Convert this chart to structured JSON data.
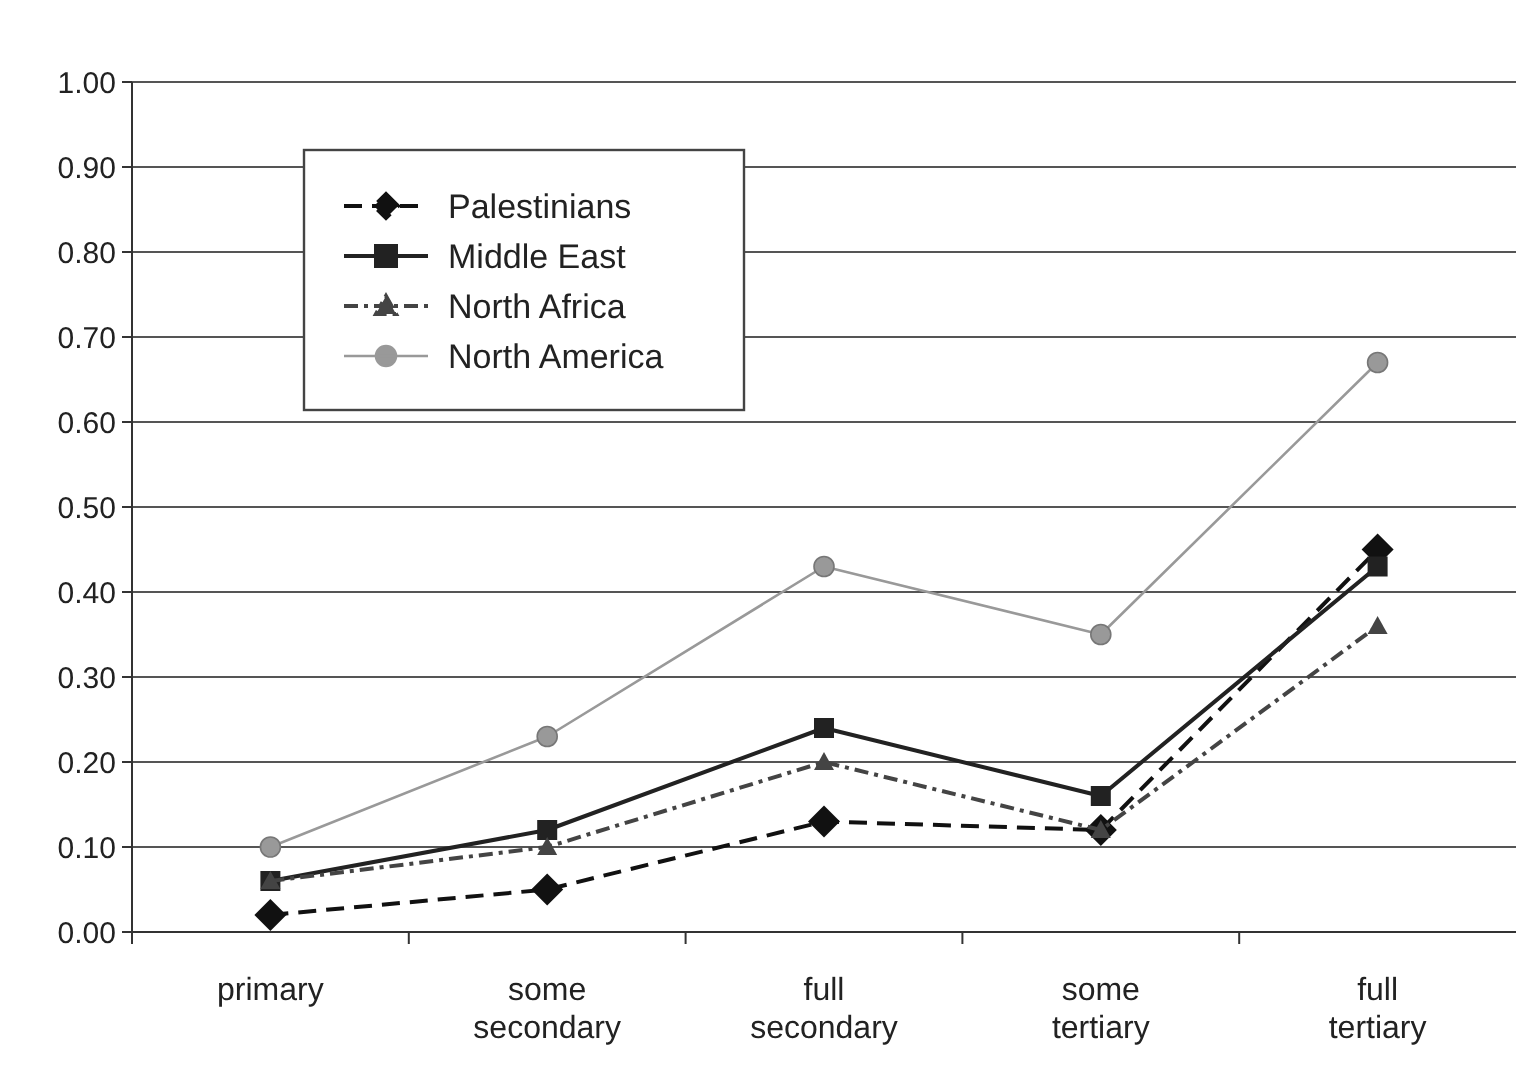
{
  "chart_data": {
    "type": "line",
    "categories": [
      "primary",
      "some secondary",
      "full secondary",
      "some tertiary",
      "full tertiary"
    ],
    "series": [
      {
        "name": "Palestinians",
        "color": "#111111",
        "values": [
          0.02,
          0.05,
          0.13,
          0.12,
          0.45
        ],
        "marker": "diamond",
        "line_style": "dashed"
      },
      {
        "name": "Middle East",
        "color": "#222222",
        "values": [
          0.06,
          0.12,
          0.24,
          0.16,
          0.43
        ],
        "marker": "square",
        "line_style": "solid"
      },
      {
        "name": "North Africa",
        "color": "#444444",
        "values": [
          0.06,
          0.1,
          0.2,
          0.12,
          0.36
        ],
        "marker": "triangle",
        "line_style": "dashdot"
      },
      {
        "name": "North America",
        "color": "#999999",
        "values": [
          0.1,
          0.23,
          0.43,
          0.35,
          0.67
        ],
        "marker": "circle",
        "line_style": "solid"
      }
    ],
    "ylim": [
      0,
      1
    ],
    "yticks": [
      {
        "value": 0,
        "label": "0.00"
      },
      {
        "value": 0.1,
        "label": "0.10"
      },
      {
        "value": 0.2,
        "label": "0.20"
      },
      {
        "value": 0.3,
        "label": "0.30"
      },
      {
        "value": 0.4,
        "label": "0.40"
      },
      {
        "value": 0.5,
        "label": "0.50"
      },
      {
        "value": 0.6,
        "label": "0.60"
      },
      {
        "value": 0.7,
        "label": "0.70"
      },
      {
        "value": 0.8,
        "label": "0.80"
      },
      {
        "value": 0.9,
        "label": "0.90"
      },
      {
        "value": 1,
        "label": "1.00"
      }
    ],
    "grid": "y",
    "legend": "top left"
  }
}
